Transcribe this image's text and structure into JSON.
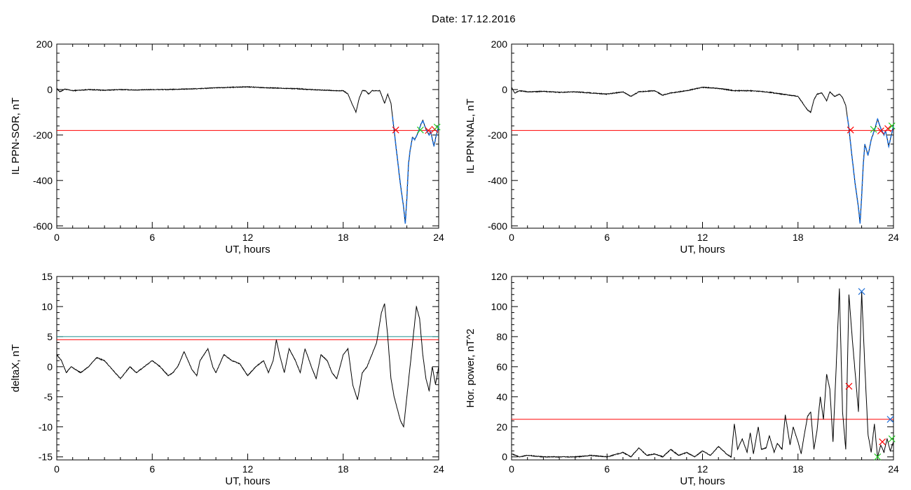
{
  "header": {
    "date_label": "Date:  17.12.2016"
  },
  "colors": {
    "trace": "#000000",
    "threshold": "#ff0000",
    "alt_threshold": "#1f8f8f",
    "highlight": "#1e6fd9",
    "marker_red": "#ff0000",
    "marker_green": "#22cc22",
    "marker_blue": "#1e6fd9"
  },
  "chart_data": [
    {
      "id": "sor",
      "type": "line",
      "title": "",
      "xlabel": "UT, hours",
      "ylabel": "IL PPN-SOR, nT",
      "xlim": [
        0,
        24
      ],
      "ylim": [
        -610,
        200
      ],
      "xticks": [
        0,
        6,
        12,
        18,
        24
      ],
      "yticks": [
        -600,
        -400,
        -200,
        0,
        200
      ],
      "threshold": -180,
      "series": [
        {
          "x": [
            0,
            0.2,
            0.5,
            1,
            2,
            3,
            4,
            5,
            6,
            7,
            8,
            9,
            10,
            11,
            12,
            13,
            14,
            15,
            16,
            17,
            17.5,
            18,
            18.3,
            18.6,
            18.8,
            19.0,
            19.2,
            19.4,
            19.6,
            19.8,
            20.0,
            20.3,
            20.6,
            20.8,
            21.0,
            21.2,
            21.4,
            21.6,
            21.8,
            21.9,
            22.0,
            22.1,
            22.2,
            22.35,
            22.5,
            22.7,
            22.9,
            23.0,
            23.2,
            23.4,
            23.5,
            23.7,
            23.85,
            24.0
          ],
          "y": [
            5,
            -10,
            2,
            -5,
            0,
            -3,
            0,
            -2,
            0,
            0,
            2,
            4,
            8,
            10,
            12,
            8,
            6,
            4,
            0,
            -3,
            -5,
            -5,
            -20,
            -70,
            -100,
            -40,
            -5,
            -5,
            -20,
            -5,
            -5,
            -5,
            -60,
            -20,
            -60,
            -180,
            -300,
            -420,
            -520,
            -590,
            -480,
            -330,
            -270,
            -210,
            -220,
            -190,
            -150,
            -135,
            -175,
            -200,
            -185,
            -250,
            -200,
            -160
          ],
          "highlight_from": 21.1
        }
      ],
      "markers": [
        {
          "x": 21.3,
          "y": -178,
          "color": "red"
        },
        {
          "x": 22.85,
          "y": -178,
          "color": "green"
        },
        {
          "x": 23.35,
          "y": -180,
          "color": "red"
        },
        {
          "x": 23.75,
          "y": -175,
          "color": "red"
        },
        {
          "x": 23.9,
          "y": -165,
          "color": "green"
        }
      ]
    },
    {
      "id": "nal",
      "type": "line",
      "title": "",
      "xlabel": "UT, hours",
      "ylabel": "IL PPN-NAL, nT",
      "xlim": [
        0,
        24
      ],
      "ylim": [
        -610,
        200
      ],
      "xticks": [
        0,
        6,
        12,
        18,
        24
      ],
      "yticks": [
        -600,
        -400,
        -200,
        0,
        200
      ],
      "threshold": -180,
      "series": [
        {
          "x": [
            0,
            0.2,
            0.5,
            1,
            2,
            3,
            4,
            5,
            6,
            7,
            7.5,
            8,
            9,
            9.5,
            10,
            11,
            12,
            13,
            14,
            15,
            16,
            17,
            18,
            18.3,
            18.6,
            18.8,
            19.0,
            19.2,
            19.5,
            19.8,
            20.0,
            20.3,
            20.6,
            20.8,
            21.0,
            21.2,
            21.4,
            21.6,
            21.8,
            21.9,
            22.0,
            22.1,
            22.2,
            22.4,
            22.6,
            22.8,
            23.0,
            23.2,
            23.4,
            23.5,
            23.7,
            23.9,
            24.0
          ],
          "y": [
            10,
            -15,
            -5,
            -10,
            -8,
            -12,
            -10,
            -15,
            -20,
            -10,
            -30,
            -10,
            -5,
            -25,
            -15,
            -5,
            10,
            5,
            -5,
            -5,
            -10,
            -20,
            -30,
            -60,
            -90,
            -100,
            -45,
            -20,
            -15,
            -50,
            -10,
            -30,
            -20,
            -35,
            -70,
            -170,
            -300,
            -420,
            -520,
            -590,
            -470,
            -330,
            -240,
            -290,
            -220,
            -180,
            -130,
            -170,
            -200,
            -180,
            -250,
            -190,
            -160
          ],
          "highlight_from": 21.1
        }
      ],
      "markers": [
        {
          "x": 21.3,
          "y": -178,
          "color": "red"
        },
        {
          "x": 22.75,
          "y": -175,
          "color": "green"
        },
        {
          "x": 23.2,
          "y": -182,
          "color": "red"
        },
        {
          "x": 23.65,
          "y": -172,
          "color": "red"
        },
        {
          "x": 23.9,
          "y": -160,
          "color": "green"
        }
      ]
    },
    {
      "id": "deltax",
      "type": "line",
      "title": "",
      "xlabel": "UT, hours",
      "ylabel": "deltaX, nT",
      "xlim": [
        0,
        24
      ],
      "ylim": [
        -15.5,
        15
      ],
      "xticks": [
        0,
        6,
        12,
        18,
        24
      ],
      "yticks": [
        -15,
        -10,
        -5,
        0,
        5,
        10,
        15
      ],
      "threshold": 4.5,
      "alt_threshold": 5.0,
      "series": [
        {
          "x": [
            0,
            0.3,
            0.6,
            0.9,
            1.2,
            1.5,
            2.0,
            2.5,
            3.0,
            3.5,
            4.0,
            4.3,
            4.6,
            5.0,
            5.5,
            6.0,
            6.5,
            7.0,
            7.3,
            7.6,
            8.0,
            8.5,
            8.8,
            9.0,
            9.5,
            9.8,
            10.0,
            10.5,
            11.0,
            11.5,
            12.0,
            12.5,
            13.0,
            13.3,
            13.6,
            13.8,
            14.0,
            14.3,
            14.6,
            15.0,
            15.3,
            15.6,
            16.0,
            16.3,
            16.6,
            17.0,
            17.3,
            17.6,
            18.0,
            18.3,
            18.6,
            18.9,
            19.2,
            19.5,
            19.8,
            20.1,
            20.4,
            20.6,
            20.8,
            21.0,
            21.2,
            21.4,
            21.6,
            21.8,
            22.0,
            22.2,
            22.4,
            22.6,
            22.8,
            23.0,
            23.2,
            23.4,
            23.6,
            23.8,
            24.0
          ],
          "y": [
            2,
            1,
            -1,
            0,
            -0.5,
            -1,
            0,
            1.5,
            1,
            -0.5,
            -2,
            -1,
            0,
            -1,
            0,
            1,
            0,
            -1.5,
            -1,
            0,
            2.5,
            -0.5,
            -1.5,
            1,
            3,
            0,
            -1,
            2,
            1,
            0.5,
            -1.5,
            0,
            1,
            -1,
            1,
            4.5,
            2,
            -1,
            3,
            1,
            -1,
            3,
            0,
            -2,
            2,
            1,
            -1,
            -2,
            2,
            3,
            -3,
            -5.5,
            -1,
            0,
            2,
            4,
            9,
            10.5,
            5,
            -2,
            -5,
            -7,
            -9,
            -10,
            -5,
            0,
            5,
            10,
            8,
            2,
            -2,
            -4,
            0,
            -3,
            0
          ]
        }
      ]
    },
    {
      "id": "power",
      "type": "line",
      "title": "",
      "xlabel": "UT, hours",
      "ylabel": "Hor. power, nT^2",
      "xlim": [
        0,
        24
      ],
      "ylim": [
        -2,
        120
      ],
      "xticks": [
        0,
        6,
        12,
        18,
        24
      ],
      "yticks": [
        0,
        20,
        40,
        60,
        80,
        100,
        120
      ],
      "threshold": 25,
      "series": [
        {
          "x": [
            0,
            0.5,
            1,
            2,
            3,
            4,
            5,
            6,
            7,
            7.5,
            8,
            8.5,
            9,
            9.5,
            10,
            10.5,
            11,
            11.5,
            12,
            12.5,
            13,
            13.5,
            13.8,
            14.0,
            14.2,
            14.5,
            14.8,
            15.0,
            15.2,
            15.5,
            15.7,
            16.0,
            16.2,
            16.5,
            16.7,
            17.0,
            17.2,
            17.5,
            17.7,
            18.0,
            18.2,
            18.4,
            18.6,
            18.8,
            19.0,
            19.2,
            19.4,
            19.6,
            19.8,
            20.0,
            20.2,
            20.4,
            20.6,
            20.8,
            21.0,
            21.2,
            21.4,
            21.6,
            21.8,
            22.0,
            22.2,
            22.4,
            22.6,
            22.8,
            23.0,
            23.2,
            23.4,
            23.6,
            23.8,
            24.0
          ],
          "y": [
            2,
            0,
            1,
            0,
            0,
            0,
            1,
            0,
            3,
            0,
            6,
            1,
            2,
            0,
            5,
            1,
            3,
            0,
            4,
            1,
            7,
            2,
            0,
            22,
            5,
            12,
            3,
            16,
            2,
            20,
            5,
            6,
            14,
            3,
            9,
            5,
            28,
            8,
            20,
            10,
            2,
            15,
            27,
            30,
            5,
            18,
            40,
            25,
            55,
            45,
            10,
            60,
            112,
            30,
            5,
            108,
            80,
            55,
            30,
            110,
            60,
            15,
            3,
            22,
            0,
            8,
            3,
            12,
            4,
            10
          ]
        }
      ],
      "markers": [
        {
          "x": 21.2,
          "y": 47,
          "color": "red"
        },
        {
          "x": 22.0,
          "y": 110,
          "color": "blue"
        },
        {
          "x": 23.0,
          "y": 0,
          "color": "green"
        },
        {
          "x": 23.3,
          "y": 10,
          "color": "red"
        },
        {
          "x": 23.8,
          "y": 25,
          "color": "blue"
        },
        {
          "x": 23.9,
          "y": 12,
          "color": "green"
        }
      ]
    }
  ]
}
